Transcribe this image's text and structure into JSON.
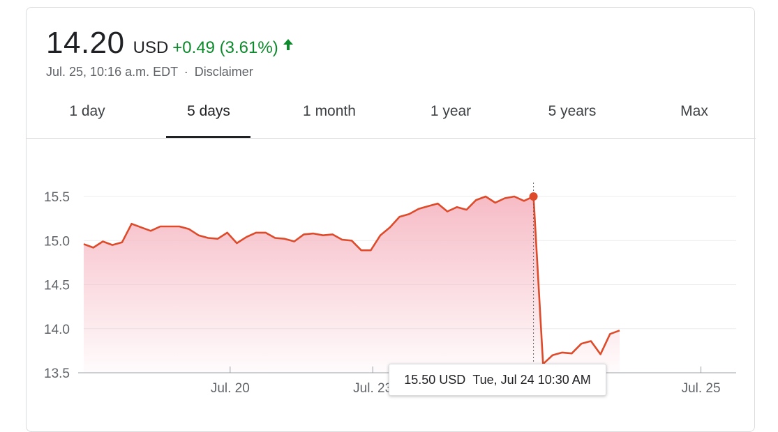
{
  "quote": {
    "price": "14.20",
    "currency": "USD",
    "change": "+0.49 (3.61%)",
    "timestamp": "Jul. 25, 10:16 a.m. EDT",
    "separator": "·",
    "disclaimer": "Disclaimer"
  },
  "tabs": [
    {
      "label": "1 day"
    },
    {
      "label": "5 days",
      "active": true
    },
    {
      "label": "1 month"
    },
    {
      "label": "1 year"
    },
    {
      "label": "5 years"
    },
    {
      "label": "Max"
    }
  ],
  "colors": {
    "line": "#dd4b2a",
    "positive": "#0d8a2c",
    "fill_top": "#f6b8c3"
  },
  "tooltip": {
    "price": "15.50 USD",
    "time": "Tue, Jul 24 10:30 AM"
  },
  "chart_data": {
    "type": "area",
    "title": "",
    "xlabel": "",
    "ylabel": "",
    "ylim": [
      13.5,
      15.5
    ],
    "yticks": [
      "15.5",
      "15.0",
      "14.5",
      "14.0",
      "13.5"
    ],
    "yticks_values": [
      15.5,
      15.0,
      14.5,
      14.0,
      13.5
    ],
    "xticks": [
      {
        "label": "Jul. 20",
        "at": 15.3
      },
      {
        "label": "Jul. 23",
        "at": 30.2
      },
      {
        "label": "Jul. 25",
        "at": 64.5
      }
    ],
    "grid": true,
    "hover_index": 47,
    "series": [
      {
        "values": [
          14.96,
          14.92,
          14.99,
          14.95,
          14.98,
          15.19,
          15.15,
          15.11,
          15.16,
          15.16,
          15.16,
          15.13,
          15.06,
          15.03,
          15.02,
          15.09,
          14.97,
          15.04,
          15.09,
          15.09,
          15.03,
          15.02,
          14.99,
          15.07,
          15.08,
          15.06,
          15.07,
          15.01,
          15.0,
          14.89,
          14.89,
          15.06,
          15.15,
          15.27,
          15.3,
          15.36,
          15.39,
          15.42,
          15.33,
          15.38,
          15.35,
          15.46,
          15.5,
          15.43,
          15.48,
          15.5,
          15.45,
          15.5,
          13.6,
          13.7,
          13.73,
          13.72,
          13.83,
          13.86,
          13.71,
          13.94,
          13.98
        ]
      }
    ]
  }
}
